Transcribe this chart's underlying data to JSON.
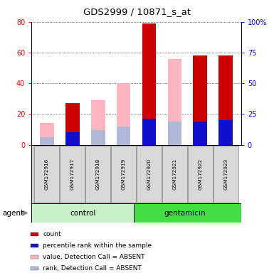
{
  "title": "GDS2999 / 10871_s_at",
  "samples": [
    "GSM172916",
    "GSM172917",
    "GSM172918",
    "GSM172919",
    "GSM172920",
    "GSM172921",
    "GSM172922",
    "GSM172923"
  ],
  "count_values": [
    0,
    27,
    0,
    0,
    79,
    0,
    58,
    58
  ],
  "rank_values": [
    0,
    10,
    0,
    0,
    21,
    0,
    19,
    20
  ],
  "absent_value_values": [
    14,
    0,
    29,
    40,
    0,
    56,
    0,
    0
  ],
  "absent_rank_values": [
    6,
    0,
    12,
    15,
    0,
    19,
    0,
    0
  ],
  "count_color": "#cc0000",
  "rank_color": "#1010cc",
  "absent_value_color": "#ffb6c1",
  "absent_rank_color": "#b0b8d8",
  "ylim_left": [
    0,
    80
  ],
  "ylim_right": [
    0,
    100
  ],
  "yticks_left": [
    0,
    20,
    40,
    60,
    80
  ],
  "yticks_right": [
    0,
    25,
    50,
    75,
    100
  ],
  "control_color_light": "#c8f0c8",
  "control_color": "#90ee90",
  "gentamicin_color": "#44dd44",
  "legend_items": [
    {
      "label": "count",
      "color": "#cc0000"
    },
    {
      "label": "percentile rank within the sample",
      "color": "#1010cc"
    },
    {
      "label": "value, Detection Call = ABSENT",
      "color": "#ffb6c1"
    },
    {
      "label": "rank, Detection Call = ABSENT",
      "color": "#b0b8d8"
    }
  ]
}
